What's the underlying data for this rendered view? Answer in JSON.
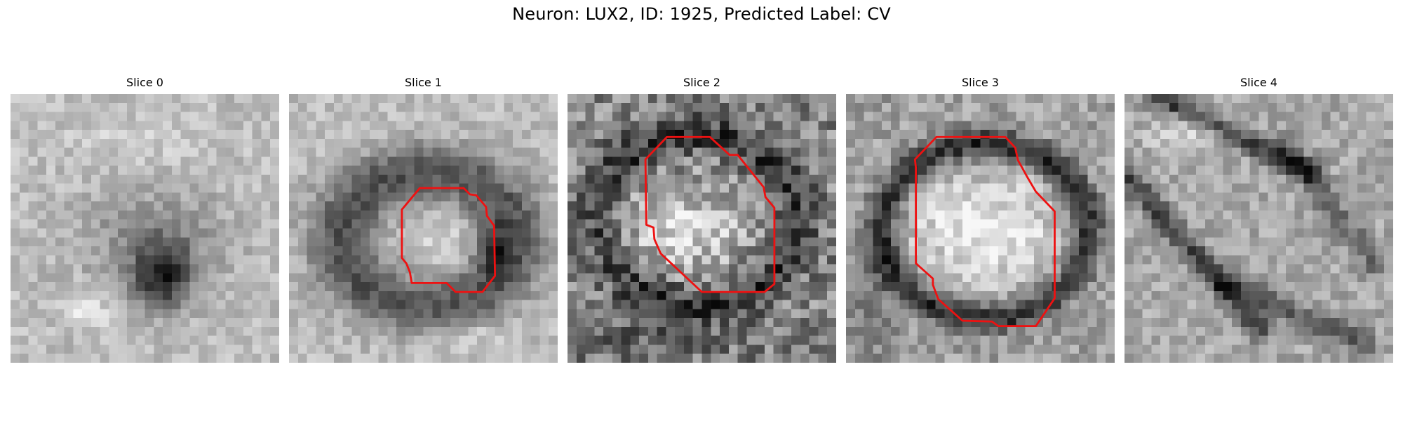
{
  "figure": {
    "title": "Neuron: LUX2, ID: 1925, Predicted Label: CV"
  },
  "panels": [
    {
      "title": "Slice 0",
      "has_outline": false
    },
    {
      "title": "Slice 1",
      "has_outline": true
    },
    {
      "title": "Slice 2",
      "has_outline": true
    },
    {
      "title": "Slice 3",
      "has_outline": true
    },
    {
      "title": "Slice 4",
      "has_outline": false
    }
  ],
  "colors": {
    "outline": "#ee1111",
    "colormap": "grayscale"
  }
}
